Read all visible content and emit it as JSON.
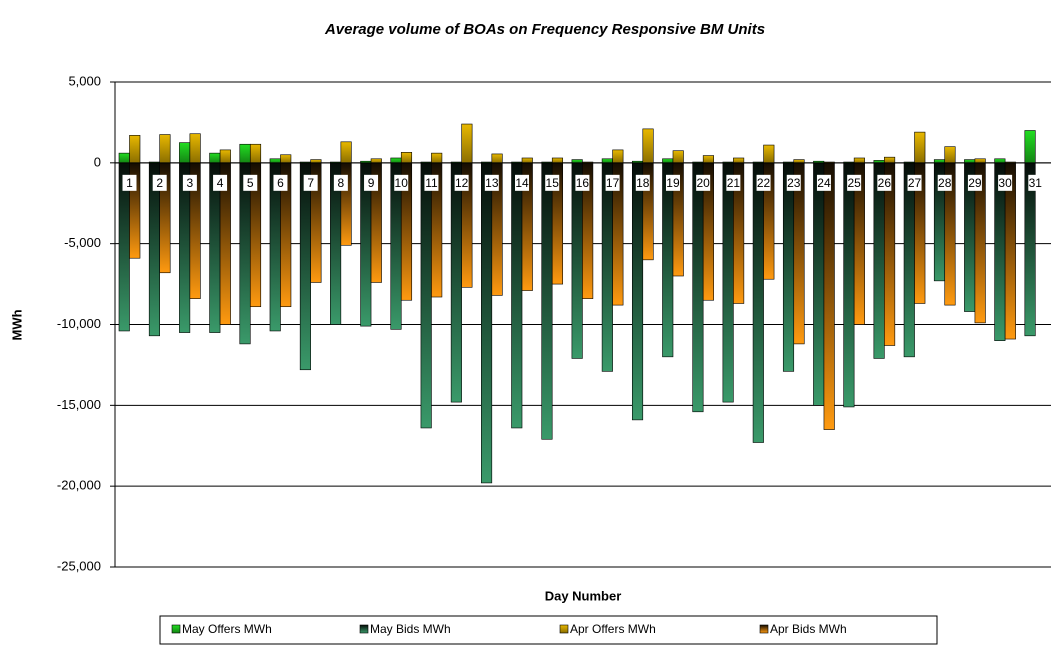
{
  "chart_data": {
    "type": "bar",
    "title": "Average volume of BOAs on Frequency Responsive BM Units",
    "x_label": "Day Number",
    "y_label": "MWh",
    "categories": [
      "1",
      "2",
      "3",
      "4",
      "5",
      "6",
      "7",
      "8",
      "9",
      "10",
      "11",
      "12",
      "13",
      "14",
      "15",
      "16",
      "17",
      "18",
      "19",
      "20",
      "21",
      "22",
      "23",
      "24",
      "25",
      "26",
      "27",
      "28",
      "29",
      "30",
      "31"
    ],
    "series": [
      {
        "name": "May Offers MWh",
        "color": "#22dd22",
        "group": 0,
        "values": [
          600,
          50,
          1250,
          600,
          1150,
          250,
          50,
          50,
          100,
          300,
          50,
          50,
          50,
          50,
          50,
          200,
          250,
          100,
          250,
          50,
          50,
          50,
          50,
          100,
          50,
          150,
          50,
          200,
          200,
          250,
          2000
        ]
      },
      {
        "name": "May Bids MWh",
        "color": "#3a9a6a",
        "group": 0,
        "values": [
          -10400,
          -10700,
          -10500,
          -10500,
          -11200,
          -10400,
          -12800,
          -10000,
          -10100,
          -10300,
          -16400,
          -14800,
          -19800,
          -16400,
          -17100,
          -12100,
          -12900,
          -15900,
          -12000,
          -15400,
          -14800,
          -17300,
          -12900,
          -15000,
          -15100,
          -12100,
          -12000,
          -7300,
          -9200,
          -11000,
          -10700
        ]
      },
      {
        "name": "Apr Offers MWh",
        "color": "#e8b800",
        "group": 1,
        "values": [
          1700,
          1750,
          1800,
          800,
          1150,
          500,
          200,
          1300,
          250,
          650,
          600,
          2400,
          550,
          300,
          300,
          50,
          800,
          2100,
          750,
          450,
          300,
          1100,
          200,
          50,
          300,
          350,
          1900,
          1000,
          250,
          50,
          null
        ]
      },
      {
        "name": "Apr Bids MWh",
        "color": "#ff9a10",
        "group": 1,
        "values": [
          -5900,
          -6800,
          -8400,
          -10000,
          -8900,
          -8900,
          -7400,
          -5100,
          -7400,
          -8500,
          -8300,
          -7700,
          -8200,
          -7900,
          -7500,
          -8400,
          -8800,
          -6000,
          -7000,
          -8500,
          -8700,
          -7200,
          -11200,
          -16500,
          -10000,
          -11300,
          -8700,
          -8800,
          -9900,
          -10900,
          null
        ]
      }
    ],
    "ylim": [
      -25000,
      5000
    ],
    "yticks": [
      {
        "value": -25000,
        "label": "-25,000"
      },
      {
        "value": -20000,
        "label": "-20,000"
      },
      {
        "value": -15000,
        "label": "-15,000"
      },
      {
        "value": -10000,
        "label": "-10,000"
      },
      {
        "value": -5000,
        "label": "-5,000"
      },
      0,
      {
        "value": 5000,
        "label": "5,000"
      }
    ],
    "grid": true
  }
}
